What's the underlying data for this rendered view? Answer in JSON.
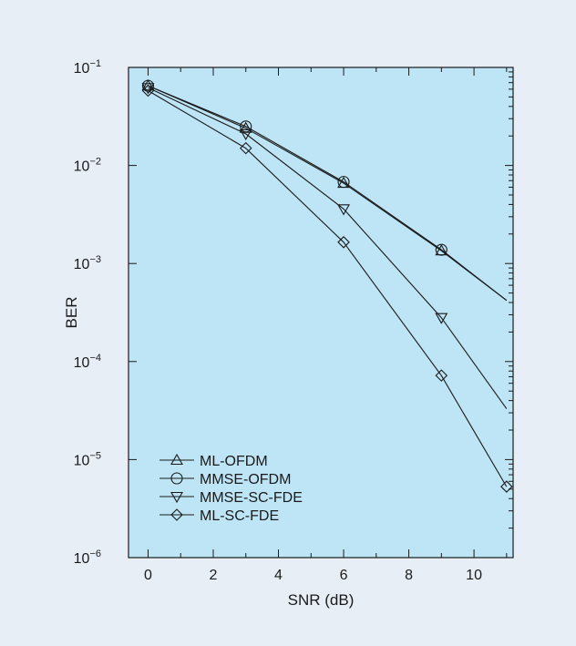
{
  "chart_data": {
    "type": "line",
    "xlabel": "SNR (dB)",
    "ylabel": "BER",
    "xlim": [
      -0.6,
      11.2
    ],
    "ylim": [
      1e-06,
      0.1
    ],
    "yscale": "log",
    "x_ticks": [
      "0",
      "2",
      "4",
      "6",
      "8",
      "10"
    ],
    "y_ticks": [
      {
        "base": "10",
        "exp": "−1"
      },
      {
        "base": "10",
        "exp": "−2"
      },
      {
        "base": "10",
        "exp": "−3"
      },
      {
        "base": "10",
        "exp": "−4"
      },
      {
        "base": "10",
        "exp": "−5"
      },
      {
        "base": "10",
        "exp": "−6"
      }
    ],
    "grid": false,
    "legend_position": "bottom-left",
    "colors": {
      "plot_background": "#bde5f6",
      "page_background": "#e8eef6",
      "line": "#1a1a1a",
      "marker_fill": "#ffffff"
    },
    "series": [
      {
        "name": "ML-OFDM",
        "marker": "triangle-up",
        "x": [
          0,
          3,
          6,
          9,
          11
        ],
        "y": [
          0.065,
          0.024,
          0.0066,
          0.00135,
          0.00042
        ]
      },
      {
        "name": "MMSE-OFDM",
        "marker": "circle",
        "x": [
          0,
          3,
          6,
          9,
          11
        ],
        "y": [
          0.065,
          0.025,
          0.0068,
          0.00138,
          0.00042
        ]
      },
      {
        "name": "MMSE-SC-FDE",
        "marker": "triangle-down",
        "x": [
          0,
          3,
          6,
          9,
          11
        ],
        "y": [
          0.062,
          0.021,
          0.0036,
          0.00028,
          3.3e-05
        ]
      },
      {
        "name": "ML-SC-FDE",
        "marker": "diamond",
        "x": [
          0,
          3,
          6,
          9,
          11
        ],
        "y": [
          0.058,
          0.015,
          0.00165,
          7.2e-05,
          5.3e-06
        ]
      }
    ]
  }
}
